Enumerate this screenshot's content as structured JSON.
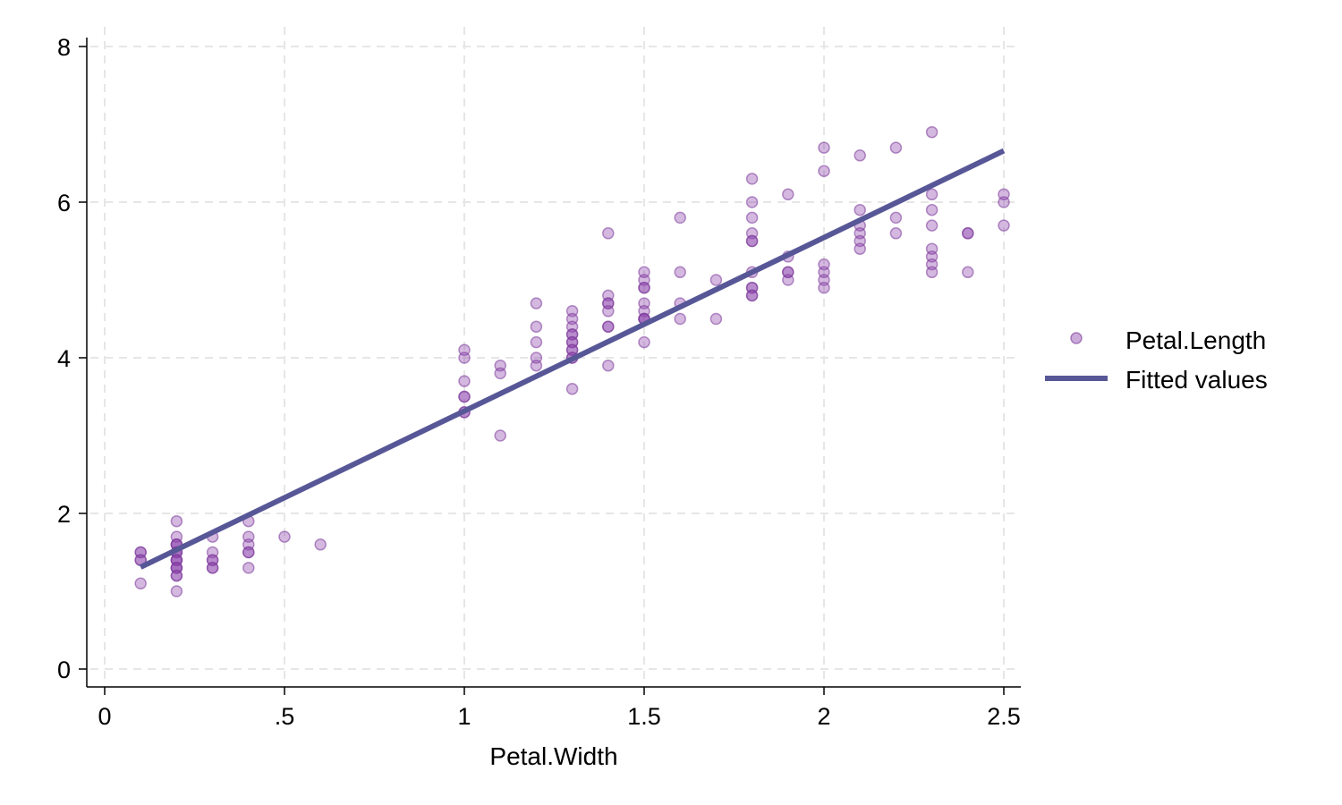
{
  "chart_data": {
    "type": "scatter",
    "xlabel": "Petal.Width",
    "ylabel": "",
    "xlim": [
      0,
      2.5
    ],
    "ylim": [
      0,
      8
    ],
    "x_ticks": [
      0,
      0.5,
      1,
      1.5,
      2,
      2.5
    ],
    "x_tick_labels": [
      "0",
      ".5",
      "1",
      "1.5",
      "2",
      "2.5"
    ],
    "y_ticks": [
      0,
      2,
      4,
      6,
      8
    ],
    "y_tick_labels": [
      "0",
      "2",
      "4",
      "6",
      "8"
    ],
    "grid": true,
    "legend_position": "right",
    "colors": {
      "points": "#8e44ad",
      "fit": "#575797",
      "grid": "#e6e6e6"
    },
    "series": [
      {
        "name": "Petal.Length",
        "kind": "scatter",
        "points": [
          [
            0.1,
            1.5
          ],
          [
            0.1,
            1.5
          ],
          [
            0.1,
            1.4
          ],
          [
            0.1,
            1.4
          ],
          [
            0.1,
            1.1
          ],
          [
            0.2,
            1.9
          ],
          [
            0.2,
            1.7
          ],
          [
            0.2,
            1.6
          ],
          [
            0.2,
            1.6
          ],
          [
            0.2,
            1.6
          ],
          [
            0.2,
            1.5
          ],
          [
            0.2,
            1.5
          ],
          [
            0.2,
            1.5
          ],
          [
            0.2,
            1.4
          ],
          [
            0.2,
            1.4
          ],
          [
            0.2,
            1.4
          ],
          [
            0.2,
            1.3
          ],
          [
            0.2,
            1.3
          ],
          [
            0.2,
            1.3
          ],
          [
            0.2,
            1.2
          ],
          [
            0.2,
            1.2
          ],
          [
            0.2,
            1.0
          ],
          [
            0.3,
            1.7
          ],
          [
            0.3,
            1.5
          ],
          [
            0.3,
            1.4
          ],
          [
            0.3,
            1.4
          ],
          [
            0.3,
            1.3
          ],
          [
            0.3,
            1.3
          ],
          [
            0.4,
            1.9
          ],
          [
            0.4,
            1.7
          ],
          [
            0.4,
            1.6
          ],
          [
            0.4,
            1.5
          ],
          [
            0.4,
            1.5
          ],
          [
            0.4,
            1.3
          ],
          [
            0.5,
            1.7
          ],
          [
            0.6,
            1.6
          ],
          [
            1.0,
            4.1
          ],
          [
            1.0,
            4.0
          ],
          [
            1.0,
            3.7
          ],
          [
            1.0,
            3.5
          ],
          [
            1.0,
            3.5
          ],
          [
            1.0,
            3.3
          ],
          [
            1.0,
            3.3
          ],
          [
            1.1,
            3.9
          ],
          [
            1.1,
            3.8
          ],
          [
            1.1,
            3.0
          ],
          [
            1.2,
            4.7
          ],
          [
            1.2,
            4.4
          ],
          [
            1.2,
            4.2
          ],
          [
            1.2,
            4.0
          ],
          [
            1.2,
            3.9
          ],
          [
            1.3,
            4.6
          ],
          [
            1.3,
            4.5
          ],
          [
            1.3,
            4.4
          ],
          [
            1.3,
            4.3
          ],
          [
            1.3,
            4.3
          ],
          [
            1.3,
            4.2
          ],
          [
            1.3,
            4.2
          ],
          [
            1.3,
            4.1
          ],
          [
            1.3,
            4.1
          ],
          [
            1.3,
            4.0
          ],
          [
            1.3,
            4.0
          ],
          [
            1.3,
            3.6
          ],
          [
            1.4,
            5.6
          ],
          [
            1.4,
            4.8
          ],
          [
            1.4,
            4.7
          ],
          [
            1.4,
            4.7
          ],
          [
            1.4,
            4.6
          ],
          [
            1.4,
            4.4
          ],
          [
            1.4,
            4.4
          ],
          [
            1.4,
            3.9
          ],
          [
            1.5,
            5.1
          ],
          [
            1.5,
            5.0
          ],
          [
            1.5,
            4.9
          ],
          [
            1.5,
            4.9
          ],
          [
            1.5,
            4.7
          ],
          [
            1.5,
            4.6
          ],
          [
            1.5,
            4.5
          ],
          [
            1.5,
            4.5
          ],
          [
            1.5,
            4.5
          ],
          [
            1.5,
            4.2
          ],
          [
            1.6,
            5.8
          ],
          [
            1.6,
            5.1
          ],
          [
            1.6,
            4.7
          ],
          [
            1.6,
            4.5
          ],
          [
            1.7,
            5.0
          ],
          [
            1.7,
            4.5
          ],
          [
            1.8,
            6.3
          ],
          [
            1.8,
            6.0
          ],
          [
            1.8,
            5.8
          ],
          [
            1.8,
            5.6
          ],
          [
            1.8,
            5.5
          ],
          [
            1.8,
            5.5
          ],
          [
            1.8,
            5.1
          ],
          [
            1.8,
            4.9
          ],
          [
            1.8,
            4.9
          ],
          [
            1.8,
            4.8
          ],
          [
            1.8,
            4.8
          ],
          [
            1.9,
            6.1
          ],
          [
            1.9,
            5.3
          ],
          [
            1.9,
            5.1
          ],
          [
            1.9,
            5.1
          ],
          [
            1.9,
            5.0
          ],
          [
            2.0,
            6.7
          ],
          [
            2.0,
            6.4
          ],
          [
            2.0,
            5.2
          ],
          [
            2.0,
            5.1
          ],
          [
            2.0,
            5.0
          ],
          [
            2.0,
            4.9
          ],
          [
            2.1,
            6.6
          ],
          [
            2.1,
            5.9
          ],
          [
            2.1,
            5.7
          ],
          [
            2.1,
            5.6
          ],
          [
            2.1,
            5.5
          ],
          [
            2.1,
            5.4
          ],
          [
            2.2,
            6.7
          ],
          [
            2.2,
            5.8
          ],
          [
            2.2,
            5.6
          ],
          [
            2.3,
            6.9
          ],
          [
            2.3,
            6.1
          ],
          [
            2.3,
            5.9
          ],
          [
            2.3,
            5.7
          ],
          [
            2.3,
            5.4
          ],
          [
            2.3,
            5.3
          ],
          [
            2.3,
            5.2
          ],
          [
            2.3,
            5.1
          ],
          [
            2.4,
            5.6
          ],
          [
            2.4,
            5.6
          ],
          [
            2.4,
            5.1
          ],
          [
            2.5,
            6.1
          ],
          [
            2.5,
            6.0
          ],
          [
            2.5,
            5.7
          ]
        ]
      },
      {
        "name": "Fitted values",
        "kind": "line",
        "points": [
          [
            0.1,
            1.31
          ],
          [
            2.5,
            6.66
          ]
        ]
      }
    ]
  }
}
